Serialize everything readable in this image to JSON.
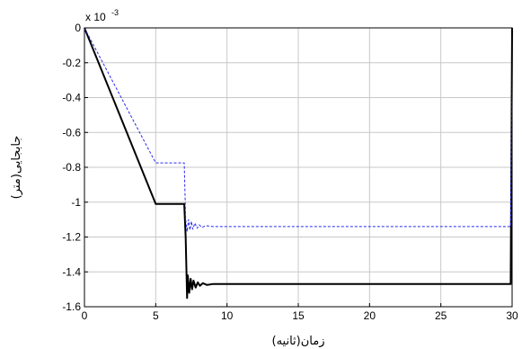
{
  "chart_data": {
    "type": "line",
    "xlabel": "زمان(ثانیه)",
    "ylabel": "جابجایی(متر)",
    "exponent_label": "x 10",
    "exponent_power": "-3",
    "xlim": [
      0,
      30
    ],
    "ylim": [
      -1.6,
      0
    ],
    "x_ticks": [
      0,
      5,
      10,
      15,
      20,
      25,
      30
    ],
    "y_ticks": [
      0,
      -0.2,
      -0.4,
      -0.6,
      -0.8,
      -1,
      -1.2,
      -1.4,
      -1.6
    ],
    "x_tick_labels": [
      "0",
      "5",
      "10",
      "15",
      "20",
      "25",
      "30"
    ],
    "y_tick_labels": [
      "0",
      "-0.2",
      "-0.4",
      "-0.6",
      "-0.8",
      "-1",
      "-1.2",
      "-1.4",
      "-1.6"
    ],
    "grid": true,
    "series": [
      {
        "color": "#000000",
        "style": "solid",
        "points": [
          [
            0,
            0
          ],
          [
            5,
            -1.01
          ],
          [
            7,
            -1.01
          ],
          [
            7.1,
            -1.2
          ],
          [
            7.2,
            -1.55
          ],
          [
            7.25,
            -1.42
          ],
          [
            7.35,
            -1.52
          ],
          [
            7.45,
            -1.44
          ],
          [
            7.55,
            -1.5
          ],
          [
            7.65,
            -1.45
          ],
          [
            7.8,
            -1.49
          ],
          [
            7.95,
            -1.46
          ],
          [
            8.1,
            -1.48
          ],
          [
            8.3,
            -1.465
          ],
          [
            8.6,
            -1.475
          ],
          [
            9,
            -1.47
          ],
          [
            29.9,
            -1.47
          ],
          [
            30,
            0
          ]
        ]
      },
      {
        "color": "#2a2af0",
        "style": "dashed",
        "points": [
          [
            0,
            0
          ],
          [
            5,
            -0.775
          ],
          [
            7,
            -0.775
          ],
          [
            7.1,
            -1.1
          ],
          [
            7.2,
            -1.17
          ],
          [
            7.3,
            -1.1
          ],
          [
            7.4,
            -1.16
          ],
          [
            7.5,
            -1.11
          ],
          [
            7.6,
            -1.155
          ],
          [
            7.75,
            -1.12
          ],
          [
            7.9,
            -1.15
          ],
          [
            8.05,
            -1.13
          ],
          [
            8.25,
            -1.145
          ],
          [
            8.5,
            -1.135
          ],
          [
            9,
            -1.14
          ],
          [
            29.9,
            -1.14
          ],
          [
            30,
            -0.2
          ]
        ]
      }
    ]
  }
}
